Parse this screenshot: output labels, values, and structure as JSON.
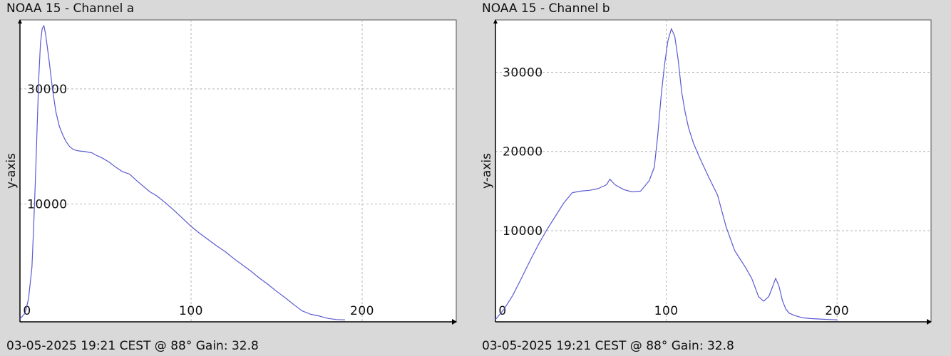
{
  "chart_data": [
    {
      "type": "line",
      "title": "NOAA 15 - Channel a",
      "footer": "03-05-2025 19:21 CEST @ 88° Gain: 32.8",
      "ylabel": "y-axis",
      "xlabel": "",
      "xlim": [
        0,
        255
      ],
      "ylim": [
        -10500,
        42000
      ],
      "grid": true,
      "xticks": [
        0,
        100,
        200
      ],
      "yticks": [
        10000,
        30000
      ],
      "line_color": "#5a5ad2",
      "series": [
        {
          "x": [
            0,
            3,
            5,
            7,
            8,
            9,
            10,
            11,
            12,
            13,
            14,
            15,
            17,
            19,
            21,
            23,
            25,
            27,
            29,
            31,
            33,
            35,
            38,
            42,
            45,
            48,
            52,
            56,
            60,
            64,
            68,
            72,
            76,
            80,
            85,
            90,
            95,
            100,
            105,
            110,
            115,
            120,
            125,
            130,
            135,
            140,
            145,
            150,
            155,
            160,
            165,
            170,
            175,
            180,
            185,
            190
          ],
          "y": [
            -10000,
            -9000,
            -6500,
            -1000,
            6000,
            14000,
            23000,
            32000,
            38000,
            40500,
            41000,
            39500,
            35000,
            30000,
            26000,
            23500,
            22000,
            20800,
            20000,
            19500,
            19300,
            19200,
            19100,
            18900,
            18400,
            18000,
            17300,
            16400,
            15600,
            15200,
            14100,
            13100,
            12100,
            11400,
            10200,
            8900,
            7500,
            6100,
            4900,
            3800,
            2700,
            1700,
            500,
            -600,
            -1700,
            -2900,
            -4000,
            -5200,
            -6300,
            -7500,
            -8600,
            -9200,
            -9500,
            -9900,
            -10100,
            -10150
          ]
        }
      ]
    },
    {
      "type": "line",
      "title": "NOAA 15 - Channel b",
      "footer": "03-05-2025 19:21 CEST @ 88° Gain: 32.8",
      "ylabel": "y-axis",
      "xlabel": "",
      "xlim": [
        0,
        255
      ],
      "ylim": [
        -1500,
        36600
      ],
      "grid": true,
      "xticks": [
        0,
        100,
        200
      ],
      "yticks": [
        10000,
        20000,
        30000
      ],
      "line_color": "#5a5ad2",
      "series": [
        {
          "x": [
            0,
            5,
            10,
            15,
            20,
            25,
            30,
            35,
            40,
            45,
            50,
            55,
            60,
            65,
            67,
            70,
            75,
            80,
            85,
            90,
            93,
            95,
            97,
            99,
            101,
            103,
            105,
            107,
            109,
            111,
            113,
            116,
            120,
            125,
            130,
            135,
            140,
            143,
            146,
            150,
            154,
            157,
            160,
            162,
            164,
            166,
            168,
            170,
            172,
            175,
            180,
            185,
            190,
            195,
            200
          ],
          "y": [
            -1200,
            100,
            1800,
            3900,
            6100,
            8200,
            10100,
            11800,
            13500,
            14800,
            15000,
            15100,
            15300,
            15800,
            16500,
            15800,
            15200,
            14900,
            15000,
            16300,
            18000,
            22000,
            27000,
            31000,
            34000,
            35500,
            34500,
            31500,
            27500,
            25000,
            23000,
            21000,
            19000,
            16700,
            14500,
            10500,
            7500,
            6500,
            5500,
            4000,
            1700,
            1100,
            1700,
            2800,
            4000,
            3000,
            1200,
            100,
            -400,
            -700,
            -1000,
            -1100,
            -1150,
            -1200,
            -1250
          ]
        }
      ]
    }
  ]
}
